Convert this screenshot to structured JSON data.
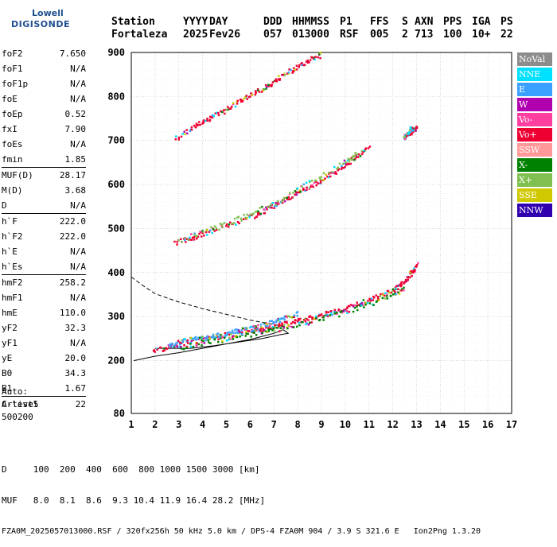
{
  "logo": {
    "line1": "Lowell",
    "line2": "DIGISONDE"
  },
  "header": {
    "labels": [
      "Station",
      "YYYY",
      "DAY",
      "DDD",
      "HHMMSS",
      "P1",
      "FFS",
      "S",
      "AXN",
      "PPS",
      "IGA",
      "PS"
    ],
    "values": [
      "Fortaleza",
      "2025",
      "Fev26",
      "057",
      "013000",
      "RSF",
      "005",
      "2",
      "713",
      "100",
      "10+",
      "22"
    ]
  },
  "params": {
    "group1": [
      [
        "foF2",
        "7.650"
      ],
      [
        "foF1",
        "N/A"
      ],
      [
        "foF1p",
        "N/A"
      ],
      [
        "foE",
        "N/A"
      ],
      [
        "foEp",
        "0.52"
      ],
      [
        "fxI",
        "7.90"
      ],
      [
        "foEs",
        "N/A"
      ],
      [
        "fmin",
        "1.85"
      ]
    ],
    "group2": [
      [
        "MUF(D)",
        "28.17"
      ],
      [
        "M(D)",
        "3.68"
      ],
      [
        "D",
        "N/A"
      ]
    ],
    "group3": [
      [
        "h`F",
        "222.0"
      ],
      [
        "h`F2",
        "222.0"
      ],
      [
        "h`E",
        "N/A"
      ],
      [
        "h`Es",
        "N/A"
      ]
    ],
    "group4": [
      [
        "hmF2",
        "258.2"
      ],
      [
        "hmF1",
        "N/A"
      ],
      [
        "hmE",
        "110.0"
      ],
      [
        "yF2",
        "32.3"
      ],
      [
        "yF1",
        "N/A"
      ],
      [
        "yE",
        "20.0"
      ],
      [
        "B0",
        "34.3"
      ],
      [
        "B1",
        "1.67"
      ]
    ],
    "group5": [
      [
        "C-level",
        "22"
      ]
    ]
  },
  "auto": [
    "Auto:",
    "Artist5",
    "500200"
  ],
  "footer": {
    "d_line": "D     100  200  400  600  800 1000 1500 3000 [km]",
    "muf_line": "MUF   8.0  8.1  8.6  9.3 10.4 11.9 16.4 28.2 [MHz]",
    "file_line": "FZA0M_2025057013000.RSF / 320fx256h 50 kHz 5.0 km / DPS-4 FZA0M 904 / 3.9 S 321.6 E   Ion2Png 1.3.20"
  },
  "legend": [
    {
      "label": "NoVal",
      "color": "#8c8c8c"
    },
    {
      "label": "NNE",
      "color": "#00e0ff"
    },
    {
      "label": "E",
      "color": "#3aa0ff"
    },
    {
      "label": "W",
      "color": "#b000b0"
    },
    {
      "label": "Vo-",
      "color": "#ff3fa0"
    },
    {
      "label": "Vo+",
      "color": "#ee0033"
    },
    {
      "label": "SSW",
      "color": "#ff9999"
    },
    {
      "label": "X-",
      "color": "#008000"
    },
    {
      "label": "X+",
      "color": "#7fc050"
    },
    {
      "label": "SSE",
      "color": "#d0c800"
    },
    {
      "label": "NNW",
      "color": "#3000b0"
    }
  ],
  "chart_data": {
    "type": "scatter",
    "xlabel": "",
    "ylabel": "",
    "xlim": [
      1,
      17
    ],
    "ylim": [
      80,
      900
    ],
    "xticks": [
      "1",
      "2",
      "3",
      "4",
      "5",
      "6",
      "7",
      "8",
      "9",
      "10",
      "11",
      "12",
      "13",
      "14",
      "15",
      "16",
      "17"
    ],
    "yticks": [
      {
        "value": 80,
        "label": "80"
      },
      {
        "value": 200,
        "label": "200"
      },
      {
        "value": 300,
        "label": "300"
      },
      {
        "value": 400,
        "label": "400"
      },
      {
        "value": 500,
        "label": "500"
      },
      {
        "value": 600,
        "label": "600"
      },
      {
        "value": 700,
        "label": "700"
      },
      {
        "value": 800,
        "label": "800"
      },
      {
        "value": 900,
        "label": "900"
      }
    ],
    "traces": [
      {
        "name": "o-trace 1st hop",
        "color": "#ee0033",
        "points": [
          [
            1.9,
            225
          ],
          [
            2.5,
            232
          ],
          [
            3,
            238
          ],
          [
            4,
            248
          ],
          [
            5,
            258
          ],
          [
            6,
            268
          ],
          [
            6.5,
            272
          ],
          [
            7,
            278
          ],
          [
            7.5,
            285
          ],
          [
            8,
            292
          ],
          [
            8.5,
            298
          ],
          [
            9,
            305
          ],
          [
            9.5,
            312
          ],
          [
            10,
            320
          ],
          [
            10.5,
            330
          ],
          [
            11,
            340
          ],
          [
            11.5,
            350
          ],
          [
            12,
            362
          ],
          [
            12.3,
            373
          ],
          [
            12.6,
            390
          ],
          [
            12.8,
            405
          ],
          [
            13,
            420
          ]
        ]
      },
      {
        "name": "x-trace 1st hop",
        "color": "#008000",
        "points": [
          [
            3,
            232
          ],
          [
            4,
            242
          ],
          [
            5,
            252
          ],
          [
            6,
            262
          ],
          [
            7,
            272
          ],
          [
            8,
            283
          ],
          [
            9,
            297
          ],
          [
            10,
            313
          ],
          [
            11,
            330
          ],
          [
            12,
            350
          ],
          [
            12.5,
            365
          ]
        ]
      },
      {
        "name": "E-dir echoes",
        "color": "#3aa0ff",
        "points": [
          [
            2.5,
            236
          ],
          [
            3,
            244
          ],
          [
            3.5,
            250
          ],
          [
            4,
            252
          ],
          [
            4.5,
            258
          ],
          [
            5,
            262
          ],
          [
            5.5,
            270
          ],
          [
            6,
            274
          ],
          [
            6.5,
            282
          ],
          [
            7,
            290
          ],
          [
            7.5,
            300
          ],
          [
            8,
            308
          ]
        ]
      },
      {
        "name": "2nd hop",
        "color": "#ee0033",
        "points": [
          [
            2.8,
            470
          ],
          [
            3.5,
            480
          ],
          [
            4,
            490
          ],
          [
            5,
            510
          ],
          [
            6,
            528
          ],
          [
            6.5,
            540
          ],
          [
            7,
            555
          ],
          [
            7.5,
            570
          ],
          [
            8,
            585
          ],
          [
            8.5,
            598
          ],
          [
            9,
            612
          ],
          [
            9.5,
            630
          ],
          [
            10,
            648
          ],
          [
            10.5,
            668
          ],
          [
            11,
            690
          ]
        ]
      },
      {
        "name": "2nd hop x",
        "color": "#7fc050",
        "points": [
          [
            3,
            475
          ],
          [
            4,
            495
          ],
          [
            5,
            515
          ],
          [
            6,
            535
          ],
          [
            7,
            560
          ],
          [
            8,
            592
          ],
          [
            9,
            620
          ],
          [
            10,
            655
          ],
          [
            10.5,
            675
          ]
        ]
      },
      {
        "name": "3rd hop",
        "color": "#ee0033",
        "points": [
          [
            2.8,
            705
          ],
          [
            3.5,
            730
          ],
          [
            4,
            745
          ],
          [
            4.5,
            760
          ],
          [
            5,
            772
          ],
          [
            5.5,
            790
          ],
          [
            6,
            805
          ],
          [
            6.5,
            820
          ],
          [
            7,
            835
          ],
          [
            7.5,
            855
          ],
          [
            8,
            870
          ],
          [
            8.5,
            885
          ],
          [
            9,
            898
          ]
        ]
      },
      {
        "name": "upper scattered",
        "color": "#ee0033",
        "points": [
          [
            12.5,
            710
          ],
          [
            12.8,
            725
          ],
          [
            13,
            735
          ]
        ]
      },
      {
        "name": "NNE scattered",
        "color": "#00e0ff",
        "points": [
          [
            12.4,
            705
          ],
          [
            12.6,
            718
          ],
          [
            12.8,
            730
          ]
        ]
      }
    ],
    "profile_solid": [
      [
        1.1,
        200
      ],
      [
        2,
        210
      ],
      [
        3,
        218
      ],
      [
        4,
        228
      ],
      [
        5,
        238
      ],
      [
        6,
        248
      ],
      [
        6.5,
        255
      ],
      [
        7,
        262
      ],
      [
        7.4,
        270
      ],
      [
        7.6,
        262
      ],
      [
        7.2,
        258
      ],
      [
        6.5,
        250
      ],
      [
        5.5,
        242
      ],
      [
        4.5,
        234
      ],
      [
        3.5,
        228
      ],
      [
        2.5,
        228
      ],
      [
        2,
        228
      ]
    ],
    "profile_dashed": [
      [
        1.0,
        390
      ],
      [
        1.5,
        370
      ],
      [
        2,
        352
      ],
      [
        3,
        333
      ],
      [
        4,
        318
      ],
      [
        5,
        305
      ],
      [
        6,
        292
      ],
      [
        7,
        282
      ],
      [
        7.6,
        275
      ]
    ]
  }
}
